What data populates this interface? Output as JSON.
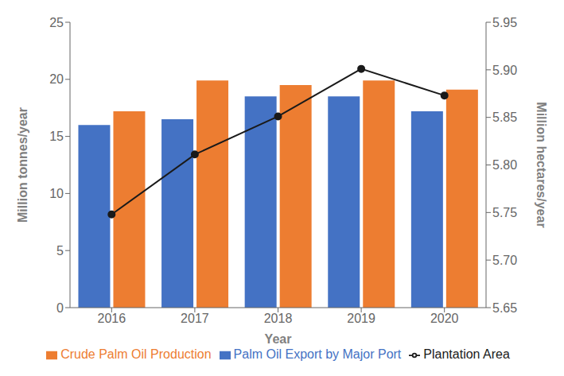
{
  "chart_data": {
    "type": "bar",
    "categories": [
      "2016",
      "2017",
      "2018",
      "2019",
      "2020"
    ],
    "xlabel": "Year",
    "ylabel": "Million tonnes/year",
    "y2label": "Million hectares/year",
    "ylim": [
      0,
      25
    ],
    "yticks": [
      0,
      5,
      10,
      15,
      20,
      25
    ],
    "y2lim": [
      5.65,
      5.95
    ],
    "y2ticks": [
      5.65,
      {
        "value": 5.7,
        "label": "5.70"
      },
      5.75,
      {
        "value": 5.8,
        "label": "5.80"
      },
      5.85,
      {
        "value": 5.9,
        "label": "5.90"
      },
      5.95
    ],
    "grid": false,
    "legend": "bottom",
    "series": [
      {
        "name": "Palm Oil Export by Major Port",
        "color": "#4472C4",
        "type": "bar",
        "values": [
          16.0,
          16.5,
          18.5,
          18.5,
          17.2
        ]
      },
      {
        "name": "Crude Palm Oil Production",
        "color": "#ED7D31",
        "type": "bar",
        "values": [
          17.2,
          19.9,
          19.5,
          19.9,
          19.1
        ]
      },
      {
        "name": "Plantation Area",
        "color": "#1a1a1a",
        "type": "line",
        "axis": "y2",
        "marker": "circle",
        "values": [
          5.748,
          5.811,
          5.851,
          5.901,
          5.873
        ]
      }
    ]
  }
}
